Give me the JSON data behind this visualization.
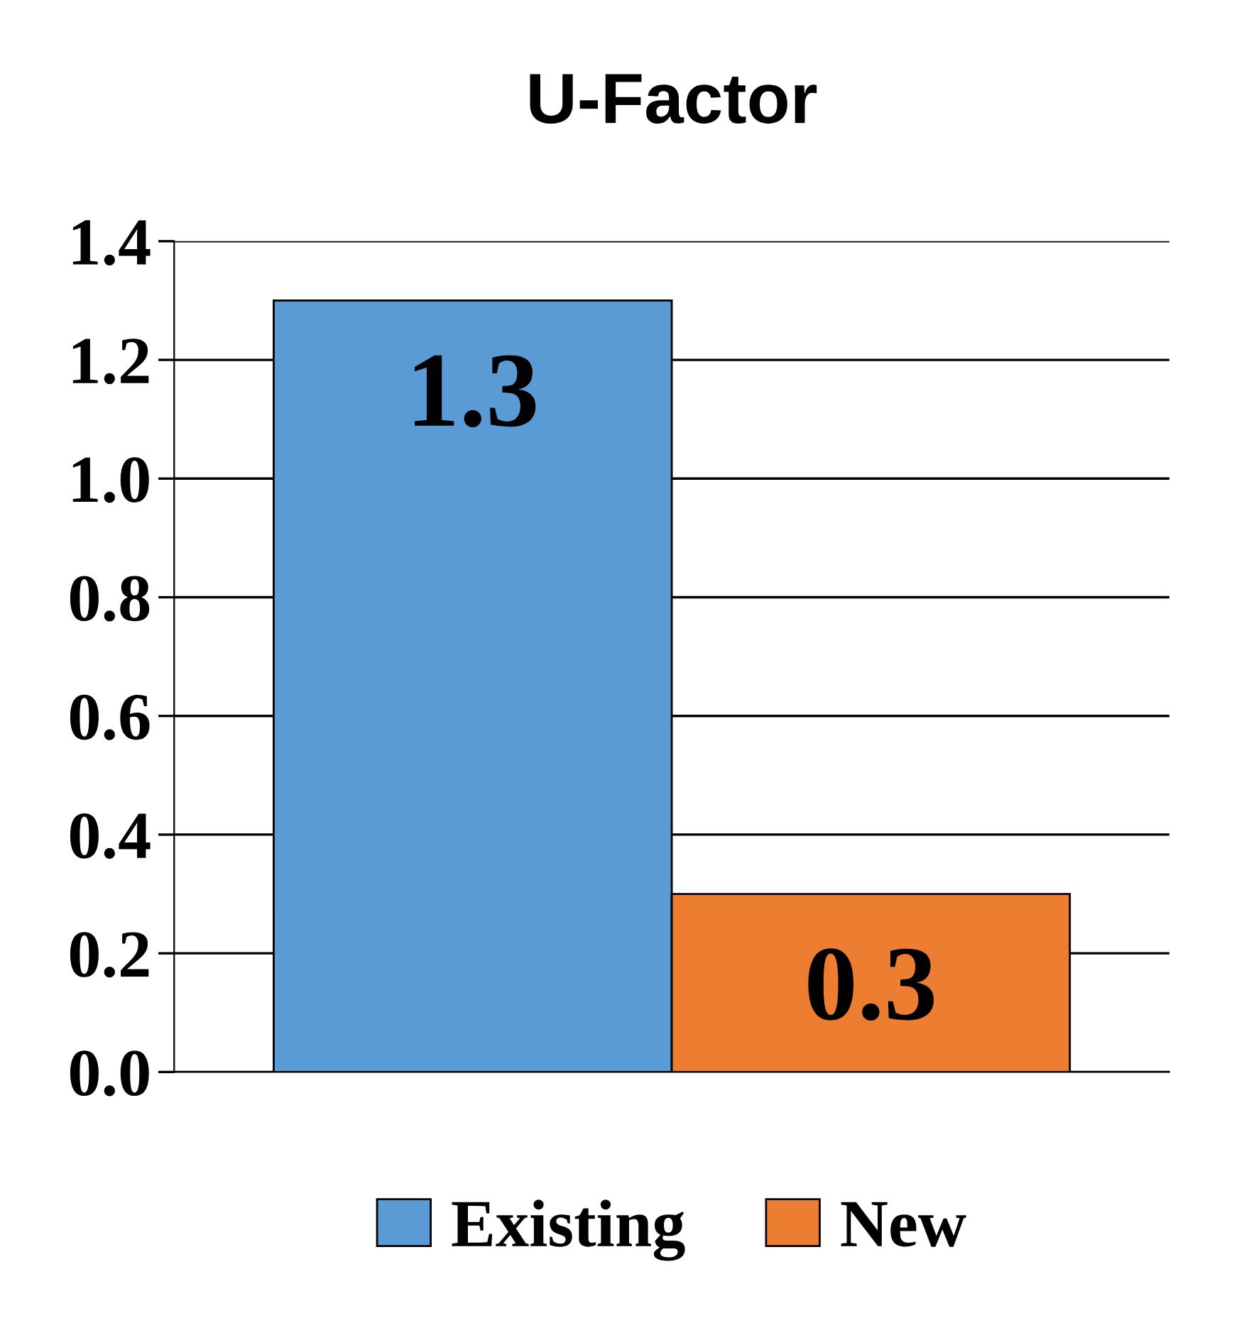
{
  "chart_data": {
    "type": "bar",
    "title": "U-Factor",
    "categories": [
      null
    ],
    "series": [
      {
        "name": "Existing",
        "color": "#5b9bd5",
        "values": [
          1.3
        ]
      },
      {
        "name": "New",
        "color": "#ed7d31",
        "values": [
          0.3
        ]
      }
    ],
    "ylim": [
      0,
      1.4
    ],
    "yticks": [
      {
        "value": 0,
        "label": "0.0"
      },
      {
        "value": 0.2,
        "label": "0.2"
      },
      {
        "value": 0.4,
        "label": "0.4"
      },
      {
        "value": 0.6,
        "label": "0.6"
      },
      {
        "value": 0.8,
        "label": "0.8"
      },
      {
        "value": 1.0,
        "label": "1.0"
      },
      {
        "value": 1.2,
        "label": "1.2"
      },
      {
        "value": 1.4,
        "label": "1.4"
      }
    ],
    "grid": "y",
    "legend": "bottom",
    "data_labels": true
  }
}
